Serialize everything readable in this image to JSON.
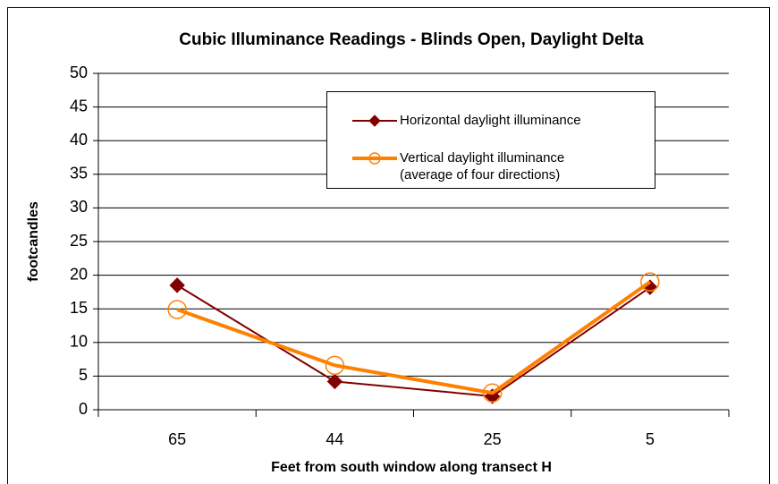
{
  "chart_data": {
    "type": "line",
    "title": "Cubic Illuminance Readings - Blinds Open, Daylight Delta",
    "x_label": "Feet from south window along transect H",
    "y_label": "footcandles",
    "categories": [
      "65",
      "44",
      "25",
      "5"
    ],
    "series": [
      {
        "name": "Horizontal daylight illuminance",
        "color": "#800000",
        "marker": "diamond",
        "values": [
          18.5,
          4.2,
          2,
          18.2
        ]
      },
      {
        "name": "Vertical daylight illuminance\n(average of four directions)",
        "color": "#ff8000",
        "marker": "circle",
        "values": [
          14.9,
          6.6,
          2.5,
          19
        ]
      }
    ],
    "ylim": [
      0,
      50
    ],
    "yticks": [
      0,
      5,
      10,
      15,
      20,
      25,
      30,
      35,
      40,
      45,
      50
    ],
    "grid": true
  }
}
